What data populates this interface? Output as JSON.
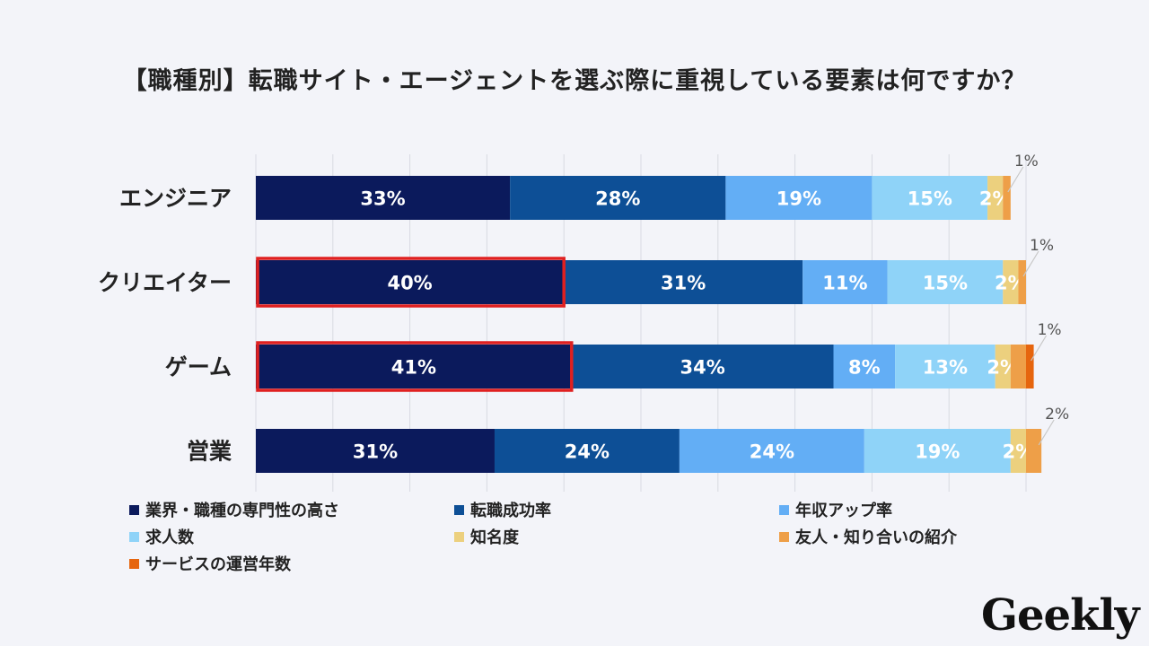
{
  "title": "【職種別】転職サイト・エージェントを選ぶ際に重視している要素は何ですか？",
  "logo_text": "Geekly",
  "colors": {
    "background": "#f3f4f9",
    "gridline": "#d8dae2",
    "highlight": "#e02020",
    "label_dark": "#ffffff",
    "label_light": "#ffffff"
  },
  "chart_data": {
    "type": "bar",
    "orientation": "horizontal",
    "stacked": true,
    "categories": [
      "エンジニア",
      "クリエイター",
      "ゲーム",
      "営業"
    ],
    "xlim": [
      0,
      100
    ],
    "grid": true,
    "legend_position": "bottom",
    "series": [
      {
        "name": "業界・職種の専門性の高さ",
        "color": "#0b1a5c",
        "values": [
          33,
          40,
          41,
          31
        ],
        "labels": [
          "33%",
          "40%",
          "41%",
          "31%"
        ]
      },
      {
        "name": "転職成功率",
        "color": "#0d4f96",
        "values": [
          28,
          31,
          34,
          24
        ],
        "labels": [
          "28%",
          "31%",
          "34%",
          "24%"
        ]
      },
      {
        "name": "年収アップ率",
        "color": "#63aef5",
        "values": [
          19,
          11,
          8,
          24
        ],
        "labels": [
          "19%",
          "11%",
          "8%",
          "24%"
        ]
      },
      {
        "name": "求人数",
        "color": "#8fd3f8",
        "values": [
          15,
          15,
          13,
          19
        ],
        "labels": [
          "15%",
          "15%",
          "13%",
          "19%"
        ]
      },
      {
        "name": "知名度",
        "color": "#ecd07e",
        "values": [
          2,
          2,
          2,
          2
        ],
        "labels": [
          "2%",
          "2%",
          "2%",
          "2%"
        ]
      },
      {
        "name": "友人・知り合いの紹介",
        "color": "#ee9f48",
        "values": [
          1,
          1,
          2,
          2
        ],
        "labels": [
          "",
          "",
          "",
          ""
        ]
      },
      {
        "name": "サービスの運営年数",
        "color": "#e6650e",
        "values": [
          0,
          0,
          1,
          0
        ],
        "labels": [
          "",
          "",
          "",
          ""
        ]
      }
    ],
    "callouts": [
      "1%",
      "1%",
      "1%",
      "2%"
    ],
    "highlighted": [
      {
        "category_index": 1,
        "series_index": 0
      },
      {
        "category_index": 2,
        "series_index": 0
      }
    ]
  }
}
